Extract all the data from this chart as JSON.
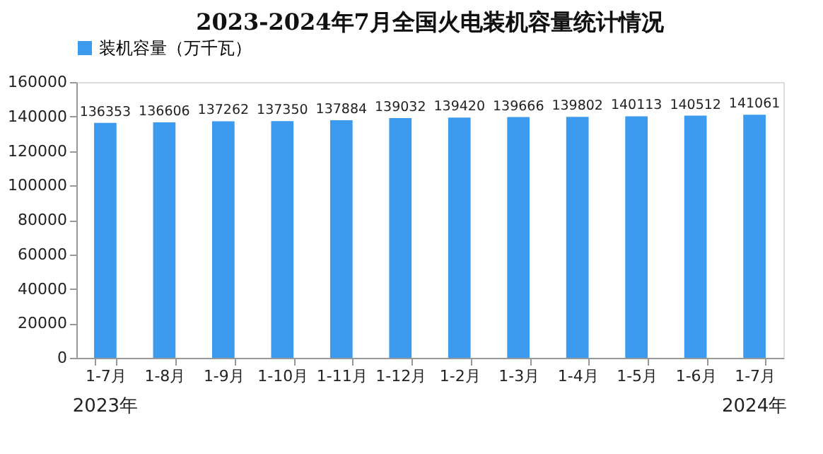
{
  "chart_data": {
    "type": "bar",
    "title": "2023-2024年7月全国火电装机容量统计情况",
    "categories": [
      "1-7月",
      "1-8月",
      "1-9月",
      "1-10月",
      "1-11月",
      "1-12月",
      "1-2月",
      "1-3月",
      "1-4月",
      "1-5月",
      "1-6月",
      "1-7月"
    ],
    "series": [
      {
        "name": "装机容量（万千瓦）",
        "color": "#3d9bef",
        "values": [
          136353,
          136606,
          137262,
          137350,
          137884,
          139032,
          139420,
          139666,
          139802,
          140113,
          140512,
          141061
        ]
      }
    ],
    "ylim": [
      0,
      160000
    ],
    "yticks": [
      0,
      20000,
      40000,
      60000,
      80000,
      100000,
      120000,
      140000,
      160000
    ],
    "data_labels": true,
    "grid": false,
    "legend": "top",
    "annotations": [
      "2023年",
      "2024年"
    ]
  }
}
